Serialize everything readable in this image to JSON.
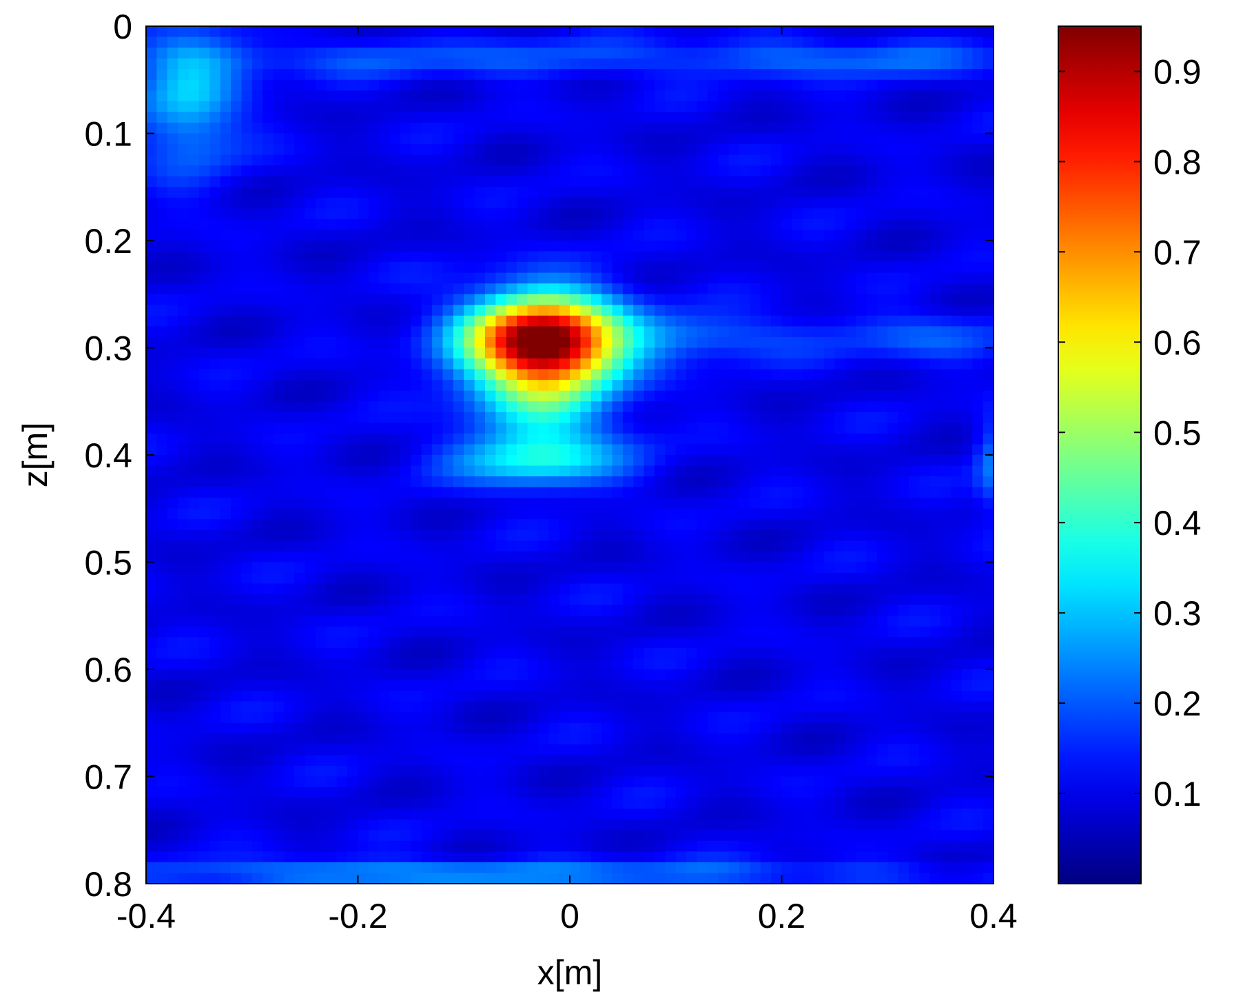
{
  "chart_data": {
    "type": "heatmap",
    "xlabel": "x[m]",
    "ylabel": "z[m]",
    "xlim": [
      -0.4,
      0.4
    ],
    "ylim": [
      0,
      0.8
    ],
    "y_reversed": true,
    "x_ticks": [
      -0.4,
      -0.2,
      0,
      0.2,
      0.4
    ],
    "x_tick_labels": [
      "-0.4",
      "-0.2",
      "0",
      "0.2",
      "0.4"
    ],
    "y_ticks": [
      0,
      0.1,
      0.2,
      0.3,
      0.4,
      0.5,
      0.6,
      0.7,
      0.8
    ],
    "y_tick_labels": [
      "0",
      "0.1",
      "0.2",
      "0.3",
      "0.4",
      "0.5",
      "0.6",
      "0.7",
      "0.8"
    ],
    "colormap": "jet",
    "clim": [
      0,
      0.95
    ],
    "colorbar_ticks": [
      0.1,
      0.2,
      0.3,
      0.4,
      0.5,
      0.6,
      0.7,
      0.8,
      0.9
    ],
    "colorbar_tick_labels": [
      "0.1",
      "0.2",
      "0.3",
      "0.4",
      "0.5",
      "0.6",
      "0.7",
      "0.8",
      "0.9"
    ],
    "background_level": 0.1,
    "features": [
      {
        "x": -0.025,
        "z": 0.295,
        "peak": 0.95,
        "sx": 0.05,
        "sz": 0.03
      },
      {
        "x": -0.03,
        "z": 0.405,
        "peak": 0.25,
        "sx": 0.055,
        "sz": 0.018
      },
      {
        "x": -0.025,
        "z": 0.36,
        "peak": 0.2,
        "sx": 0.045,
        "sz": 0.025
      },
      {
        "x": -0.36,
        "z": 0.07,
        "peak": 0.2,
        "sx": 0.035,
        "sz": 0.045
      },
      {
        "x": 0.13,
        "z": 0.29,
        "peak": 0.12,
        "sx": 0.06,
        "sz": 0.015
      },
      {
        "x": 0.33,
        "z": 0.29,
        "peak": 0.1,
        "sx": 0.06,
        "sz": 0.015
      },
      {
        "x": -0.2,
        "z": 0.79,
        "peak": 0.14,
        "sx": 0.14,
        "sz": 0.008
      },
      {
        "x": 0.1,
        "z": 0.79,
        "peak": 0.1,
        "sx": 0.2,
        "sz": 0.008
      },
      {
        "x": -0.1,
        "z": 0.03,
        "peak": 0.09,
        "sx": 0.25,
        "sz": 0.012
      },
      {
        "x": 0.28,
        "z": 0.03,
        "peak": 0.09,
        "sx": 0.1,
        "sz": 0.012
      },
      {
        "x": 0.4,
        "z": 0.41,
        "peak": 0.13,
        "sx": 0.012,
        "sz": 0.03
      }
    ]
  }
}
